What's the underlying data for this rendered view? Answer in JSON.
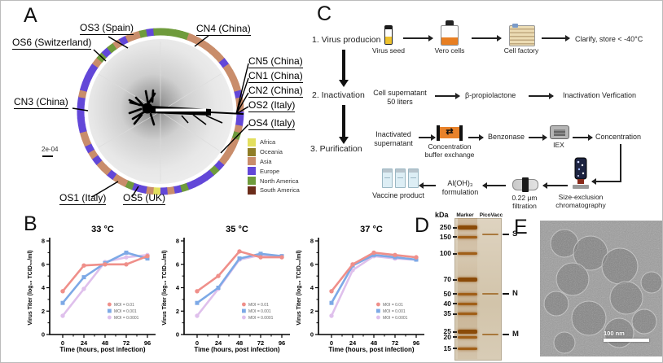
{
  "figure": {
    "panel_letters": {
      "a": "A",
      "b": "B",
      "c": "C",
      "d": "D",
      "e": "E"
    }
  },
  "panel_a": {
    "scale_bar_label": "2e-04",
    "callouts": {
      "os3": "OS3 (Spain)",
      "os6": "OS6 (Switzerland)",
      "cn4": "CN4 (China)",
      "cn3": "CN3 (China)",
      "cn5": "CN5 (China)",
      "cn1": "CN1 (China)",
      "cn2": "CN2 (China)",
      "os2": "OS2 (Italy)",
      "os4": "OS4 (Italy)",
      "os1": "OS1 (Italy)",
      "os5": "OS5 (UK)"
    },
    "legend": [
      {
        "name": "Africa",
        "color": "#e3df5e"
      },
      {
        "name": "Oceania",
        "color": "#8f7d26"
      },
      {
        "name": "Asia",
        "color": "#c98d6b"
      },
      {
        "name": "Europe",
        "color": "#6247d8"
      },
      {
        "name": "North America",
        "color": "#6f9b3c"
      },
      {
        "name": "South America",
        "color": "#6b2c1a"
      }
    ],
    "ring_color_keys": {
      "Y": "Africa",
      "O": "Oceania",
      "A": "Asia",
      "E": "Europe",
      "G": "North America",
      "S": "South America"
    },
    "ring_pattern": "GGGGAAAAAAEAAAAEAAEEAGAAAAEGEEEEGEAEYAEEGAAEAAEAEAAEEEEEAEEEEAGEGAEAAGEG"
  },
  "chart_data": {
    "type": "line",
    "x": [
      0,
      24,
      48,
      72,
      96
    ],
    "xlabel": "Time (hours, post infection)",
    "ylabel": "Virus Titer (log₁₀ TCID₅₀/ml)",
    "ylim": [
      0,
      8
    ],
    "yticks": [
      0,
      2,
      4,
      6,
      8
    ],
    "legend_position": "inside bottom-right",
    "charts": [
      {
        "title": "33 °C",
        "series": [
          {
            "name": "MOI = 0.01",
            "color": "#ef8f8a",
            "marker": "circle",
            "values": [
              3.7,
              5.9,
              6.0,
              6.0,
              6.7
            ]
          },
          {
            "name": "MOI = 0.001",
            "color": "#7da9e6",
            "marker": "square",
            "values": [
              2.7,
              4.9,
              6.1,
              7.0,
              6.5
            ]
          },
          {
            "name": "MOI = 0.0001",
            "color": "#dfc0ec",
            "marker": "circle",
            "values": [
              1.6,
              3.9,
              6.2,
              6.6,
              6.8
            ]
          }
        ]
      },
      {
        "title": "35 °C",
        "series": [
          {
            "name": "MOI = 0.01",
            "color": "#ef8f8a",
            "marker": "circle",
            "values": [
              3.7,
              5.0,
              7.1,
              6.6,
              6.6
            ]
          },
          {
            "name": "MOI = 0.001",
            "color": "#7da9e6",
            "marker": "square",
            "values": [
              2.7,
              4.0,
              6.5,
              6.9,
              6.7
            ]
          },
          {
            "name": "MOI = 0.0001",
            "color": "#dfc0ec",
            "marker": "circle",
            "values": [
              1.6,
              3.9,
              6.4,
              6.8,
              6.7
            ]
          }
        ]
      },
      {
        "title": "37 °C",
        "series": [
          {
            "name": "MOI = 0.01",
            "color": "#ef8f8a",
            "marker": "circle",
            "values": [
              3.7,
              6.0,
              7.0,
              6.8,
              6.6
            ]
          },
          {
            "name": "MOI = 0.001",
            "color": "#7da9e6",
            "marker": "square",
            "values": [
              2.7,
              5.9,
              6.8,
              6.6,
              6.4
            ]
          },
          {
            "name": "MOI = 0.0001",
            "color": "#dfc0ec",
            "marker": "circle",
            "values": [
              1.6,
              5.5,
              6.7,
              6.5,
              6.4
            ]
          }
        ]
      }
    ]
  },
  "panel_c": {
    "steps": [
      "1. Virus producion",
      "2. Inactivation",
      "3. Purification"
    ],
    "row1": {
      "item1": "Virus seed",
      "item2": "Vero cells",
      "item3": "Cell factory",
      "end_text": "Clarify, store < -40°C"
    },
    "row2": {
      "t1a": "Cell supernatant",
      "t1b": "50 liters",
      "t2": "β-propiolactone",
      "t3": "Inactivation Verfication"
    },
    "row3": {
      "t1a": "Inactivated",
      "t1b": "supernatant",
      "i1a": "Concentration",
      "i1b": "buffer exchange",
      "t2": "Benzonase",
      "i2": "IEX",
      "t3": "Concentration"
    },
    "row4": {
      "i1a": "Size-exclusion",
      "i1b": "chromatography",
      "i2a": "0.22 μm",
      "i2b": "filtration",
      "t1a": "Al(OH)₃",
      "t1b": "formulation",
      "i3": "Vaccine product"
    }
  },
  "panel_d": {
    "unit": "kDa",
    "lanes": [
      "Marker",
      "PicoVacc"
    ],
    "ladder": [
      {
        "label": "250",
        "y": 0.069,
        "strong": true
      },
      {
        "label": "150",
        "y": 0.133,
        "strong": false
      },
      {
        "label": "100",
        "y": 0.254,
        "strong": false
      },
      {
        "label": "70",
        "y": 0.439,
        "strong": true
      },
      {
        "label": "50",
        "y": 0.538,
        "strong": false
      },
      {
        "label": "40",
        "y": 0.607,
        "strong": false
      },
      {
        "label": "35",
        "y": 0.682,
        "strong": false
      },
      {
        "label": "25",
        "y": 0.809,
        "strong": true
      },
      {
        "label": "20",
        "y": 0.844,
        "strong": false
      },
      {
        "label": "15",
        "y": 0.925,
        "strong": false
      }
    ],
    "bands": [
      {
        "label": "S",
        "y": 0.116
      },
      {
        "label": "N",
        "y": 0.538
      },
      {
        "label": "M",
        "y": 0.827
      }
    ]
  },
  "panel_e": {
    "scale_bar_label": "100 nm"
  }
}
